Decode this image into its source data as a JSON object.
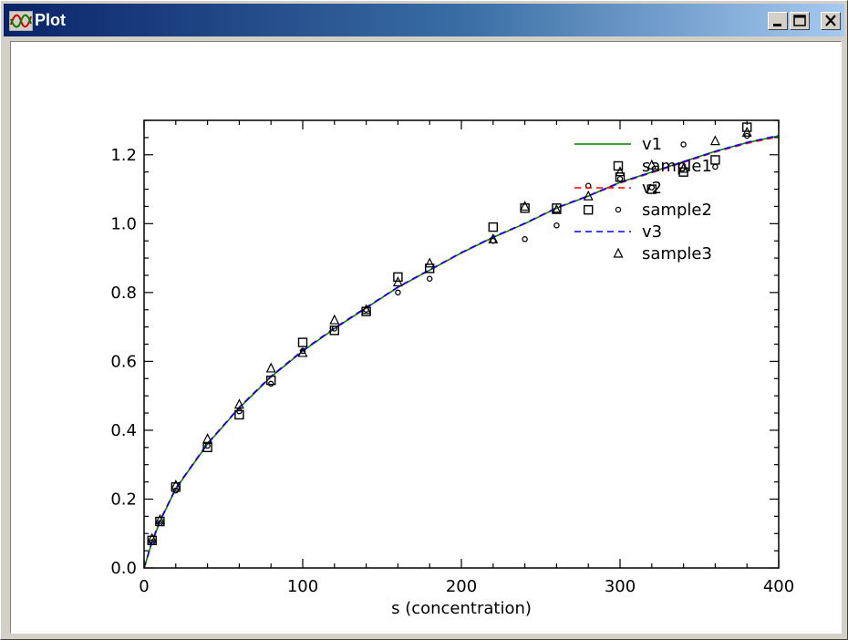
{
  "window": {
    "title": "Plot",
    "controls": {
      "minimize_icon": "minimize-icon",
      "maximize_icon": "maximize-icon",
      "close_icon": "close-icon"
    }
  },
  "colors": {
    "titlebar_start": "#0a246a",
    "titlebar_end": "#a6caf0",
    "v1": "#008000",
    "v2": "#ff0000",
    "v3": "#0000ff",
    "markers": "#000000"
  },
  "chart_data": {
    "type": "scatter",
    "title": "",
    "xlabel": "s (concentration)",
    "ylabel": "",
    "xlim": [
      0,
      400
    ],
    "ylim": [
      0,
      1.3
    ],
    "xticks": [
      0,
      100,
      200,
      300,
      400
    ],
    "yticks": [
      0.0,
      0.2,
      0.4,
      0.6,
      0.8,
      1.0,
      1.2
    ],
    "xtick_labels": [
      "0",
      "100",
      "200",
      "300",
      "400"
    ],
    "ytick_labels": [
      "0.0",
      "0.2",
      "0.4",
      "0.6",
      "0.8",
      "1.0",
      "1.2"
    ],
    "grid": false,
    "legend_position": "top-right",
    "legend": [
      {
        "label": "v1",
        "kind": "line",
        "color": "#008000",
        "dash": "solid"
      },
      {
        "label": "sample1",
        "kind": "marker",
        "marker": "square"
      },
      {
        "label": "v2",
        "kind": "line",
        "color": "#ff0000",
        "dash": "dashed"
      },
      {
        "label": "sample2",
        "kind": "marker",
        "marker": "circle"
      },
      {
        "label": "v3",
        "kind": "line",
        "color": "#0000ff",
        "dash": "dashed"
      },
      {
        "label": "sample3",
        "kind": "marker",
        "marker": "triangle"
      }
    ],
    "series": [
      {
        "name": "v1",
        "kind": "line",
        "color": "#008000",
        "dash": "solid",
        "x": [
          0,
          5,
          10,
          20,
          40,
          60,
          80,
          100,
          120,
          140,
          160,
          180,
          200,
          220,
          240,
          260,
          280,
          300,
          320,
          340,
          360,
          380,
          400
        ],
        "y": [
          0.0,
          0.075,
          0.135,
          0.23,
          0.36,
          0.465,
          0.555,
          0.63,
          0.695,
          0.755,
          0.815,
          0.865,
          0.915,
          0.96,
          1.0,
          1.045,
          1.08,
          1.12,
          1.15,
          1.18,
          1.21,
          1.235,
          1.255
        ]
      },
      {
        "name": "v2",
        "kind": "line",
        "color": "#ff0000",
        "dash": "dashed",
        "x": [
          0,
          5,
          10,
          20,
          40,
          60,
          80,
          100,
          120,
          140,
          160,
          180,
          200,
          220,
          240,
          260,
          280,
          300,
          320,
          340,
          360,
          380,
          400
        ],
        "y": [
          0.0,
          0.077,
          0.138,
          0.232,
          0.362,
          0.467,
          0.557,
          0.632,
          0.697,
          0.757,
          0.815,
          0.865,
          0.915,
          0.96,
          1.0,
          1.045,
          1.08,
          1.118,
          1.148,
          1.178,
          1.208,
          1.233,
          1.253
        ]
      },
      {
        "name": "v3",
        "kind": "line",
        "color": "#0000ff",
        "dash": "dashed",
        "x": [
          0,
          5,
          10,
          20,
          40,
          60,
          80,
          100,
          120,
          140,
          160,
          180,
          200,
          220,
          240,
          260,
          280,
          300,
          320,
          340,
          360,
          380,
          400
        ],
        "y": [
          0.0,
          0.076,
          0.136,
          0.231,
          0.361,
          0.466,
          0.556,
          0.631,
          0.696,
          0.756,
          0.816,
          0.866,
          0.916,
          0.961,
          1.001,
          1.046,
          1.081,
          1.12,
          1.15,
          1.18,
          1.21,
          1.236,
          1.256
        ]
      },
      {
        "name": "sample1",
        "kind": "marker",
        "marker": "square",
        "x": [
          5,
          10,
          20,
          40,
          60,
          80,
          100,
          120,
          140,
          160,
          180,
          220,
          240,
          260,
          280,
          300,
          320,
          340,
          360,
          380
        ],
        "y": [
          0.08,
          0.135,
          0.235,
          0.35,
          0.445,
          0.545,
          0.655,
          0.69,
          0.745,
          0.845,
          0.87,
          0.99,
          1.045,
          1.045,
          1.04,
          1.135,
          1.1,
          1.15,
          1.185,
          1.28
        ]
      },
      {
        "name": "sample2",
        "kind": "marker",
        "marker": "circle",
        "x": [
          5,
          10,
          20,
          40,
          60,
          80,
          100,
          120,
          140,
          160,
          180,
          220,
          240,
          260,
          280,
          300,
          320,
          340,
          360,
          380
        ],
        "y": [
          0.075,
          0.13,
          0.225,
          0.355,
          0.455,
          0.535,
          0.63,
          0.695,
          0.75,
          0.8,
          0.84,
          0.95,
          0.955,
          0.995,
          1.11,
          1.13,
          1.105,
          1.23,
          1.165,
          1.255
        ]
      },
      {
        "name": "sample3",
        "kind": "marker",
        "marker": "triangle",
        "x": [
          5,
          10,
          20,
          40,
          60,
          80,
          100,
          120,
          140,
          160,
          180,
          220,
          240,
          260,
          280,
          300,
          320,
          340,
          360,
          380
        ],
        "y": [
          0.085,
          0.14,
          0.24,
          0.375,
          0.475,
          0.58,
          0.625,
          0.72,
          0.75,
          0.83,
          0.885,
          0.955,
          1.05,
          1.04,
          1.08,
          1.15,
          1.17,
          1.16,
          1.24,
          1.265
        ]
      }
    ]
  }
}
